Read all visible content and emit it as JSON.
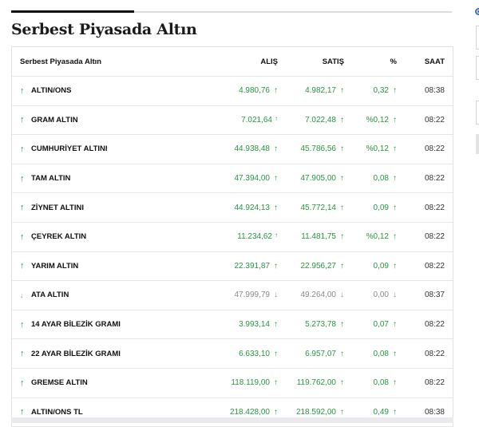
{
  "title": "Serbest Piyasada Altın",
  "table": {
    "headers": {
      "name": "Serbest Piyasada Altın",
      "alis": "ALIŞ",
      "satis": "SATIŞ",
      "pct": "%",
      "saat": "SAAT"
    },
    "rows": [
      {
        "name": "ALTIN/ONS",
        "alis": "4.980,76",
        "satis": "4.982,17",
        "pct": "0,32",
        "saat": "08:38",
        "trend": "up"
      },
      {
        "name": "GRAM ALTIN",
        "alis": "7.021,64",
        "satis": "7.022,48",
        "pct": "%0,12",
        "saat": "08:22",
        "trend": "up"
      },
      {
        "name": "CUMHURİYET ALTINI",
        "alis": "44.938,48",
        "satis": "45.786,56",
        "pct": "%0,12",
        "saat": "08:22",
        "trend": "up"
      },
      {
        "name": "TAM ALTIN",
        "alis": "47.394,00",
        "satis": "47.905,00",
        "pct": "0,08",
        "saat": "08:22",
        "trend": "up"
      },
      {
        "name": "ZİYNET ALTINI",
        "alis": "44.924,13",
        "satis": "45.772,14",
        "pct": "0,09",
        "saat": "08:22",
        "trend": "up"
      },
      {
        "name": "ÇEYREK ALTIN",
        "alis": "11.234,62",
        "satis": "11.481,75",
        "pct": "%0,12",
        "saat": "08:22",
        "trend": "up"
      },
      {
        "name": "YARIM ALTIN",
        "alis": "22.391,87",
        "satis": "22.956,27",
        "pct": "0,09",
        "saat": "08:22",
        "trend": "up"
      },
      {
        "name": "ATA ALTIN",
        "alis": "47.999,79",
        "satis": "49.264,00",
        "pct": "0,00",
        "saat": "08:37",
        "trend": "neutral"
      },
      {
        "name": "14 AYAR BİLEZİK GRAMI",
        "alis": "3.993,14",
        "satis": "5.273,78",
        "pct": "0,07",
        "saat": "08:22",
        "trend": "up"
      },
      {
        "name": "22 AYAR BİLEZİK GRAMI",
        "alis": "6.633,10",
        "satis": "6.957,07",
        "pct": "0,08",
        "saat": "08:22",
        "trend": "up"
      },
      {
        "name": "GREMSE ALTIN",
        "alis": "118.119,00",
        "satis": "119.762,00",
        "pct": "0,08",
        "saat": "08:22",
        "trend": "up"
      },
      {
        "name": "ALTIN/ONS TL",
        "alis": "218.428,00",
        "satis": "218.592,00",
        "pct": "0,49",
        "saat": "08:38",
        "trend": "up"
      }
    ]
  },
  "colors": {
    "up": "#27963f",
    "neutral": "#8a8a8a",
    "accent_bar": "#111111"
  },
  "icons": {
    "up": "arrow-up-icon",
    "neutral": "arrow-neutral-icon"
  }
}
